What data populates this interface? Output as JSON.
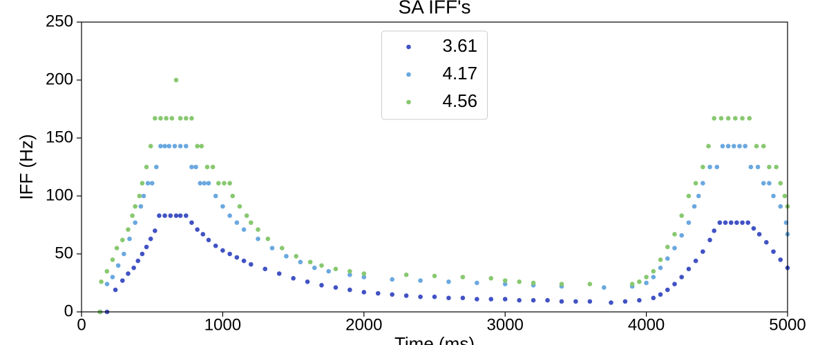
{
  "chart_data": {
    "type": "scatter",
    "title": "SA IFF's",
    "x_label": "Time (ms)",
    "y_label": "IFF (Hz)",
    "xlim": [
      0,
      5000
    ],
    "ylim": [
      0,
      250
    ],
    "xticks": [
      0,
      1000,
      2000,
      3000,
      4000,
      5000
    ],
    "yticks": [
      0,
      50,
      100,
      150,
      200,
      250
    ],
    "legend": "upper center",
    "series": [
      {
        "name": "3.61",
        "color": "#4152c4",
        "x": [
          132,
          181,
          240,
          290,
          330,
          370,
          400,
          430,
          460,
          490,
          520,
          550,
          590,
          630,
          670,
          700,
          740,
          780,
          820,
          860,
          900,
          950,
          1000,
          1050,
          1100,
          1150,
          1200,
          1300,
          1400,
          1500,
          1600,
          1700,
          1800,
          1900,
          2000,
          2100,
          2200,
          2300,
          2400,
          2500,
          2600,
          2700,
          2800,
          2900,
          3000,
          3100,
          3200,
          3300,
          3400,
          3500,
          3600,
          3750,
          3850,
          3950,
          4050,
          4100,
          4150,
          4200,
          4250,
          4300,
          4350,
          4400,
          4450,
          4480,
          4520,
          4560,
          4600,
          4640,
          4680,
          4720,
          4760,
          4800,
          4850,
          4900,
          4950,
          5000
        ],
        "values": [
          0,
          0,
          19,
          27,
          33,
          38,
          44,
          50,
          56,
          63,
          70,
          83,
          83,
          83,
          83,
          83,
          83,
          77,
          71,
          67,
          62,
          57,
          53,
          50,
          47,
          44,
          41,
          37,
          33,
          29,
          26,
          23,
          21,
          19,
          17,
          16,
          15,
          14,
          13,
          13,
          12,
          12,
          11,
          11,
          11,
          10,
          10,
          10,
          9,
          9,
          9,
          8,
          9,
          10,
          12,
          15,
          19,
          24,
          30,
          37,
          44,
          52,
          62,
          70,
          77,
          77,
          77,
          77,
          77,
          77,
          72,
          67,
          60,
          52,
          45,
          38
        ]
      },
      {
        "name": "4.17",
        "color": "#6aa8df",
        "x": [
          181,
          220,
          260,
          300,
          340,
          380,
          420,
          440,
          470,
          500,
          530,
          560,
          590,
          620,
          660,
          700,
          740,
          780,
          810,
          840,
          870,
          900,
          950,
          1000,
          1050,
          1100,
          1150,
          1250,
          1350,
          1450,
          1550,
          1650,
          1750,
          1900,
          2000,
          2200,
          2400,
          2600,
          2800,
          3000,
          3200,
          3400,
          3700,
          3900,
          4000,
          4050,
          4100,
          4150,
          4200,
          4250,
          4300,
          4340,
          4370,
          4400,
          4450,
          4500,
          4540,
          4580,
          4620,
          4660,
          4700,
          4740,
          4790,
          4830,
          4870,
          4900,
          4950,
          4990,
          5000
        ],
        "values": [
          24,
          30,
          40,
          50,
          63,
          77,
          91,
          100,
          111,
          111,
          125,
          143,
          143,
          143,
          143,
          143,
          143,
          125,
          125,
          111,
          111,
          111,
          100,
          91,
          83,
          77,
          71,
          63,
          55,
          48,
          43,
          38,
          35,
          32,
          30,
          28,
          27,
          26,
          25,
          24,
          23,
          22,
          21,
          22,
          25,
          30,
          38,
          46,
          55,
          66,
          77,
          91,
          100,
          111,
          125,
          125,
          143,
          143,
          143,
          143,
          143,
          125,
          125,
          111,
          111,
          100,
          91,
          77,
          67
        ]
      },
      {
        "name": "4.56",
        "color": "#88c870",
        "x": [
          130,
          140,
          180,
          220,
          250,
          290,
          330,
          360,
          380,
          410,
          430,
          460,
          490,
          520,
          560,
          600,
          640,
          670,
          700,
          740,
          780,
          820,
          850,
          890,
          930,
          970,
          1010,
          1050,
          1070,
          1120,
          1170,
          1200,
          1250,
          1320,
          1420,
          1520,
          1620,
          1700,
          1800,
          1900,
          2000,
          2300,
          2500,
          2700,
          2900,
          3000,
          3100,
          3200,
          3400,
          3600,
          3900,
          3950,
          4000,
          4050,
          4100,
          4150,
          4200,
          4250,
          4300,
          4350,
          4400,
          4440,
          4480,
          4530,
          4580,
          4630,
          4680,
          4730,
          4780,
          4830,
          4870,
          4920,
          4950,
          4980,
          5000
        ],
        "values": [
          0,
          26,
          35,
          45,
          55,
          62,
          71,
          83,
          91,
          100,
          111,
          125,
          143,
          167,
          167,
          167,
          167,
          200,
          167,
          167,
          167,
          143,
          143,
          125,
          125,
          111,
          111,
          111,
          100,
          91,
          83,
          77,
          71,
          63,
          55,
          48,
          43,
          40,
          37,
          35,
          33,
          32,
          31,
          30,
          29,
          27,
          26,
          25,
          24,
          24,
          24,
          26,
          30,
          35,
          45,
          56,
          67,
          83,
          100,
          111,
          125,
          143,
          167,
          167,
          167,
          167,
          167,
          167,
          143,
          143,
          125,
          125,
          111,
          100,
          91
        ]
      }
    ]
  }
}
